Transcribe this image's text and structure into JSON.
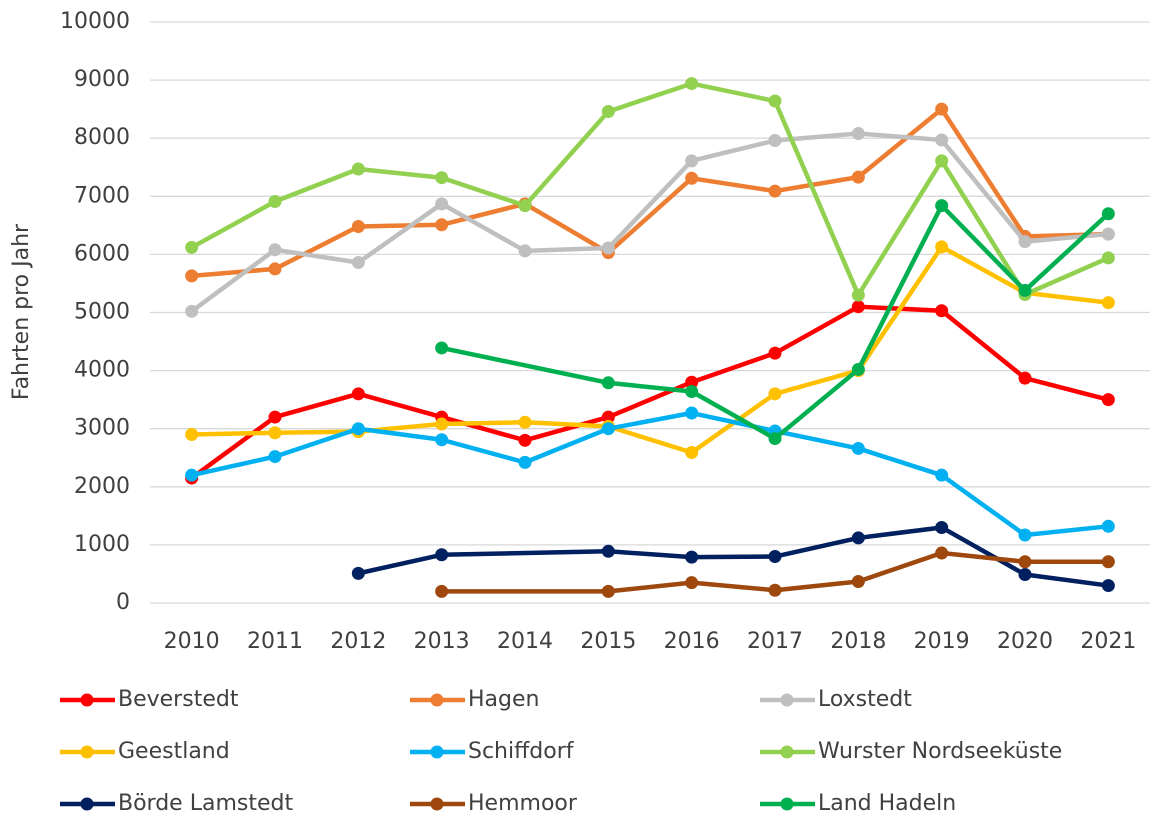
{
  "chart_data": {
    "type": "line",
    "y_label": "Fahrten pro Jahr",
    "categories": [
      "2010",
      "2011",
      "2012",
      "2013",
      "2014",
      "2015",
      "2016",
      "2017",
      "2018",
      "2019",
      "2020",
      "2021"
    ],
    "series": [
      {
        "name": "Beverstedt",
        "color": "#ff0000",
        "values": [
          2150,
          3200,
          3600,
          3200,
          2800,
          3200,
          3800,
          4300,
          5100,
          5030,
          3870,
          3500
        ]
      },
      {
        "name": "Hagen",
        "color": "#ed7d31",
        "values": [
          5630,
          5750,
          6480,
          6510,
          6870,
          6030,
          7310,
          7090,
          7330,
          8500,
          6310,
          6350
        ]
      },
      {
        "name": "Loxstedt",
        "color": "#bfbfbf",
        "values": [
          5020,
          6080,
          5860,
          6870,
          6060,
          6110,
          7610,
          7960,
          8080,
          7970,
          6220,
          6350
        ]
      },
      {
        "name": "Geestland",
        "color": "#ffc000",
        "values": [
          2900,
          2930,
          2950,
          3080,
          3110,
          3040,
          2590,
          3600,
          4000,
          6130,
          5340,
          5170
        ]
      },
      {
        "name": "Schiffdorf",
        "color": "#00b0f0",
        "values": [
          2200,
          2520,
          3000,
          2810,
          2420,
          3000,
          3270,
          2960,
          2660,
          2200,
          1170,
          1320
        ]
      },
      {
        "name": "Wurster Nordseeküste",
        "color": "#92d050",
        "values": [
          6120,
          6910,
          7470,
          7320,
          6840,
          8460,
          8940,
          8640,
          5300,
          7610,
          5310,
          5940
        ]
      },
      {
        "name": "Börde Lamstedt",
        "color": "#002060",
        "values": [
          null,
          null,
          510,
          830,
          null,
          890,
          790,
          800,
          1120,
          1300,
          490,
          300
        ]
      },
      {
        "name": "Hemmoor",
        "color": "#9e480e",
        "values": [
          null,
          null,
          null,
          200,
          null,
          200,
          350,
          220,
          370,
          860,
          710,
          710
        ]
      },
      {
        "name": "Land Hadeln",
        "color": "#00b050",
        "values": [
          null,
          null,
          null,
          4390,
          null,
          3790,
          3640,
          2830,
          4020,
          6840,
          5380,
          6700
        ]
      }
    ],
    "ylim": [
      0,
      10000
    ],
    "yticks": [
      0,
      1000,
      2000,
      3000,
      4000,
      5000,
      6000,
      7000,
      8000,
      9000,
      10000
    ],
    "grid": true,
    "span_gaps": true,
    "legend": "bottom"
  }
}
